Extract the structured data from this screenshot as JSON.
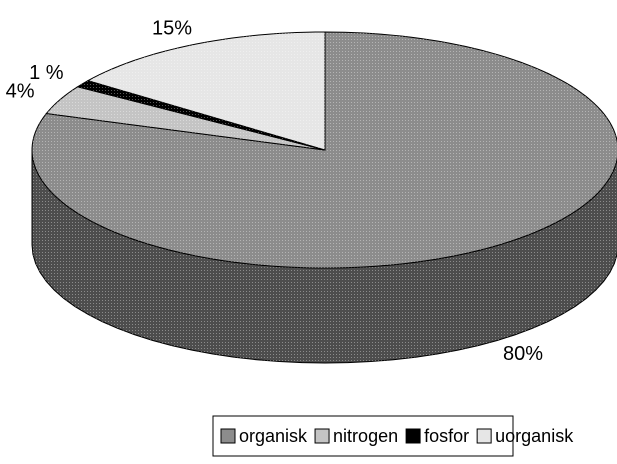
{
  "chart_data": {
    "type": "pie",
    "categories": [
      "organisk",
      "nitrogen",
      "fosfor",
      "uorganisk"
    ],
    "values": [
      80,
      4,
      1,
      15
    ],
    "value_labels": [
      "80%",
      "4%",
      "1 %",
      "15%"
    ],
    "colors": [
      "#8c8c8c",
      "#c4c4c4",
      "#000000",
      "#e6e6e6"
    ],
    "legend": "bottom"
  }
}
